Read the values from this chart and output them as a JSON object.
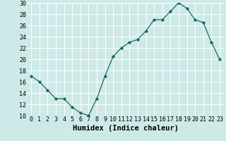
{
  "x": [
    0,
    1,
    2,
    3,
    4,
    5,
    6,
    7,
    8,
    9,
    10,
    11,
    12,
    13,
    14,
    15,
    16,
    17,
    18,
    19,
    20,
    21,
    22,
    23
  ],
  "y": [
    17,
    16,
    14.5,
    13,
    13,
    11.5,
    10.5,
    10,
    13,
    17,
    20.5,
    22,
    23,
    23.5,
    25,
    27,
    27,
    28.5,
    30,
    29,
    27,
    26.5,
    23,
    20
  ],
  "line_color": "#1a6b5a",
  "marker": "D",
  "marker_size": 2.2,
  "bg_color": "#ceeae8",
  "grid_color": "#ffffff",
  "xlabel": "Humidex (Indice chaleur)",
  "xlabel_fontsize": 7.5,
  "xlabel_weight": "bold",
  "ylim": [
    10,
    30
  ],
  "yticks": [
    10,
    12,
    14,
    16,
    18,
    20,
    22,
    24,
    26,
    28,
    30
  ],
  "xticks": [
    0,
    1,
    2,
    3,
    4,
    5,
    6,
    7,
    8,
    9,
    10,
    11,
    12,
    13,
    14,
    15,
    16,
    17,
    18,
    19,
    20,
    21,
    22,
    23
  ],
  "tick_fontsize": 6
}
